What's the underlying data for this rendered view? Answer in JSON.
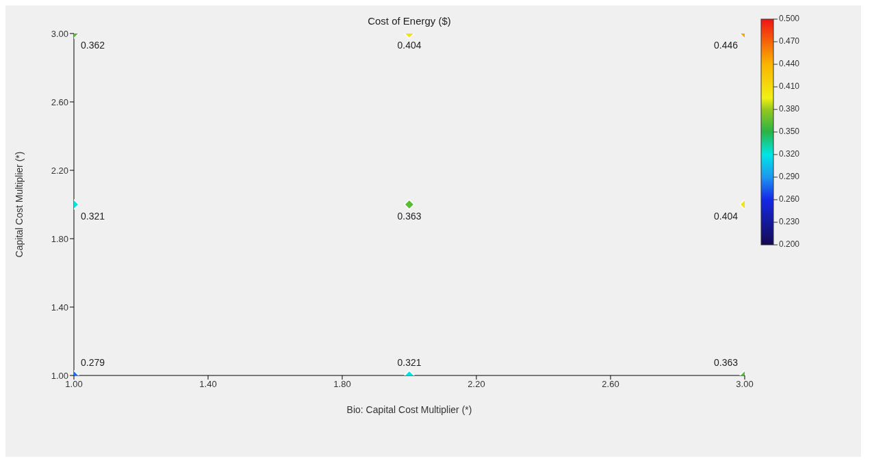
{
  "chart_data": {
    "type": "scatter",
    "title": "Cost of Energy ($)",
    "xlabel": "Bio: Capital Cost Multiplier (*)",
    "ylabel": "Capital Cost Multiplier (*)",
    "x": [
      1,
      2,
      3,
      1,
      2,
      3,
      1,
      2,
      3
    ],
    "values": [
      1,
      1,
      1,
      2,
      2,
      2,
      3,
      3,
      3
    ],
    "cvalues": [
      0.279,
      0.321,
      0.363,
      0.321,
      0.363,
      0.404,
      0.362,
      0.404,
      0.446
    ],
    "annotations": [
      {
        "text": "0.279",
        "x": 1,
        "y": 1
      },
      {
        "text": "0.321",
        "x": 2,
        "y": 1
      },
      {
        "text": "0.363",
        "x": 3,
        "y": 1
      },
      {
        "text": "0.321",
        "x": 1,
        "y": 2
      },
      {
        "text": "0.363",
        "x": 2,
        "y": 2
      },
      {
        "text": "0.404",
        "x": 3,
        "y": 2
      },
      {
        "text": "0.362",
        "x": 1,
        "y": 3
      },
      {
        "text": "0.404",
        "x": 2,
        "y": 3
      },
      {
        "text": "0.446",
        "x": 3,
        "y": 3
      }
    ],
    "xlim": [
      1,
      3
    ],
    "ylim": [
      1,
      3
    ],
    "xticks": [
      {
        "value": 1,
        "label": "1.00"
      },
      {
        "value": 1.4,
        "label": "1.40"
      },
      {
        "value": 1.8,
        "label": "1.80"
      },
      {
        "value": 2.2,
        "label": "2.20"
      },
      {
        "value": 2.6,
        "label": "2.60"
      },
      {
        "value": 3,
        "label": "3.00"
      }
    ],
    "yticks": [
      {
        "value": 1,
        "label": "1.00"
      },
      {
        "value": 1.4,
        "label": "1.40"
      },
      {
        "value": 1.8,
        "label": "1.80"
      },
      {
        "value": 2.2,
        "label": "2.20"
      },
      {
        "value": 2.6,
        "label": "2.60"
      },
      {
        "value": 3,
        "label": "3.00"
      }
    ],
    "clim": [
      0.2,
      0.5
    ],
    "cticks": [
      {
        "value": 0.2,
        "label": "0.200"
      },
      {
        "value": 0.23,
        "label": "0.230"
      },
      {
        "value": 0.26,
        "label": "0.260"
      },
      {
        "value": 0.29,
        "label": "0.290"
      },
      {
        "value": 0.32,
        "label": "0.320"
      },
      {
        "value": 0.35,
        "label": "0.350"
      },
      {
        "value": 0.38,
        "label": "0.380"
      },
      {
        "value": 0.41,
        "label": "0.410"
      },
      {
        "value": 0.44,
        "label": "0.440"
      },
      {
        "value": 0.47,
        "label": "0.470"
      },
      {
        "value": 0.5,
        "label": "0.500"
      }
    ],
    "marker": "diamond",
    "grid": false
  }
}
